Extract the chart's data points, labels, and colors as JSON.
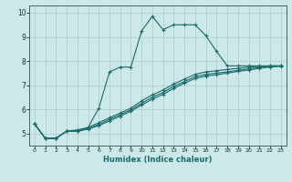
{
  "title": "",
  "xlabel": "Humidex (Indice chaleur)",
  "ylabel": "",
  "bg_color": "#cce8e8",
  "grid_color": "#a8cccc",
  "line_color": "#1a6b6b",
  "xlim": [
    -0.5,
    23.5
  ],
  "ylim": [
    4.5,
    10.3
  ],
  "xticks": [
    0,
    1,
    2,
    3,
    4,
    5,
    6,
    7,
    8,
    9,
    10,
    11,
    12,
    13,
    14,
    15,
    16,
    17,
    18,
    19,
    20,
    21,
    22,
    23
  ],
  "yticks": [
    5,
    6,
    7,
    8,
    9,
    10
  ],
  "line1_x": [
    0,
    1,
    2,
    3,
    4,
    5,
    6,
    7,
    8,
    9,
    10,
    11,
    12,
    13,
    14,
    15,
    16,
    17,
    18,
    19,
    20,
    21,
    22,
    23
  ],
  "line1_y": [
    5.4,
    4.8,
    4.8,
    5.1,
    5.15,
    5.25,
    6.05,
    7.55,
    7.75,
    7.75,
    9.25,
    9.85,
    9.3,
    9.5,
    9.5,
    9.5,
    9.05,
    8.4,
    7.8,
    7.8,
    7.8,
    7.8,
    7.8,
    7.8
  ],
  "line2_x": [
    0,
    1,
    2,
    3,
    4,
    5,
    6,
    7,
    8,
    9,
    10,
    11,
    12,
    13,
    14,
    15,
    16,
    17,
    18,
    19,
    20,
    21,
    22,
    23
  ],
  "line2_y": [
    5.4,
    4.8,
    4.8,
    5.1,
    5.1,
    5.25,
    5.45,
    5.65,
    5.85,
    6.05,
    6.35,
    6.6,
    6.8,
    7.05,
    7.25,
    7.45,
    7.55,
    7.6,
    7.65,
    7.7,
    7.75,
    7.78,
    7.8,
    7.8
  ],
  "line3_x": [
    0,
    1,
    2,
    3,
    4,
    5,
    6,
    7,
    8,
    9,
    10,
    11,
    12,
    13,
    14,
    15,
    16,
    17,
    18,
    19,
    20,
    21,
    22,
    23
  ],
  "line3_y": [
    5.4,
    4.8,
    4.8,
    5.1,
    5.1,
    5.2,
    5.38,
    5.58,
    5.78,
    5.98,
    6.25,
    6.5,
    6.7,
    6.95,
    7.15,
    7.35,
    7.45,
    7.5,
    7.55,
    7.62,
    7.68,
    7.73,
    7.78,
    7.8
  ],
  "line4_x": [
    0,
    1,
    2,
    3,
    4,
    5,
    6,
    7,
    8,
    9,
    10,
    11,
    12,
    13,
    14,
    15,
    16,
    17,
    18,
    19,
    20,
    21,
    22,
    23
  ],
  "line4_y": [
    5.4,
    4.8,
    4.8,
    5.1,
    5.1,
    5.18,
    5.33,
    5.52,
    5.72,
    5.92,
    6.18,
    6.42,
    6.62,
    6.87,
    7.08,
    7.28,
    7.38,
    7.43,
    7.5,
    7.57,
    7.63,
    7.7,
    7.75,
    7.78
  ]
}
